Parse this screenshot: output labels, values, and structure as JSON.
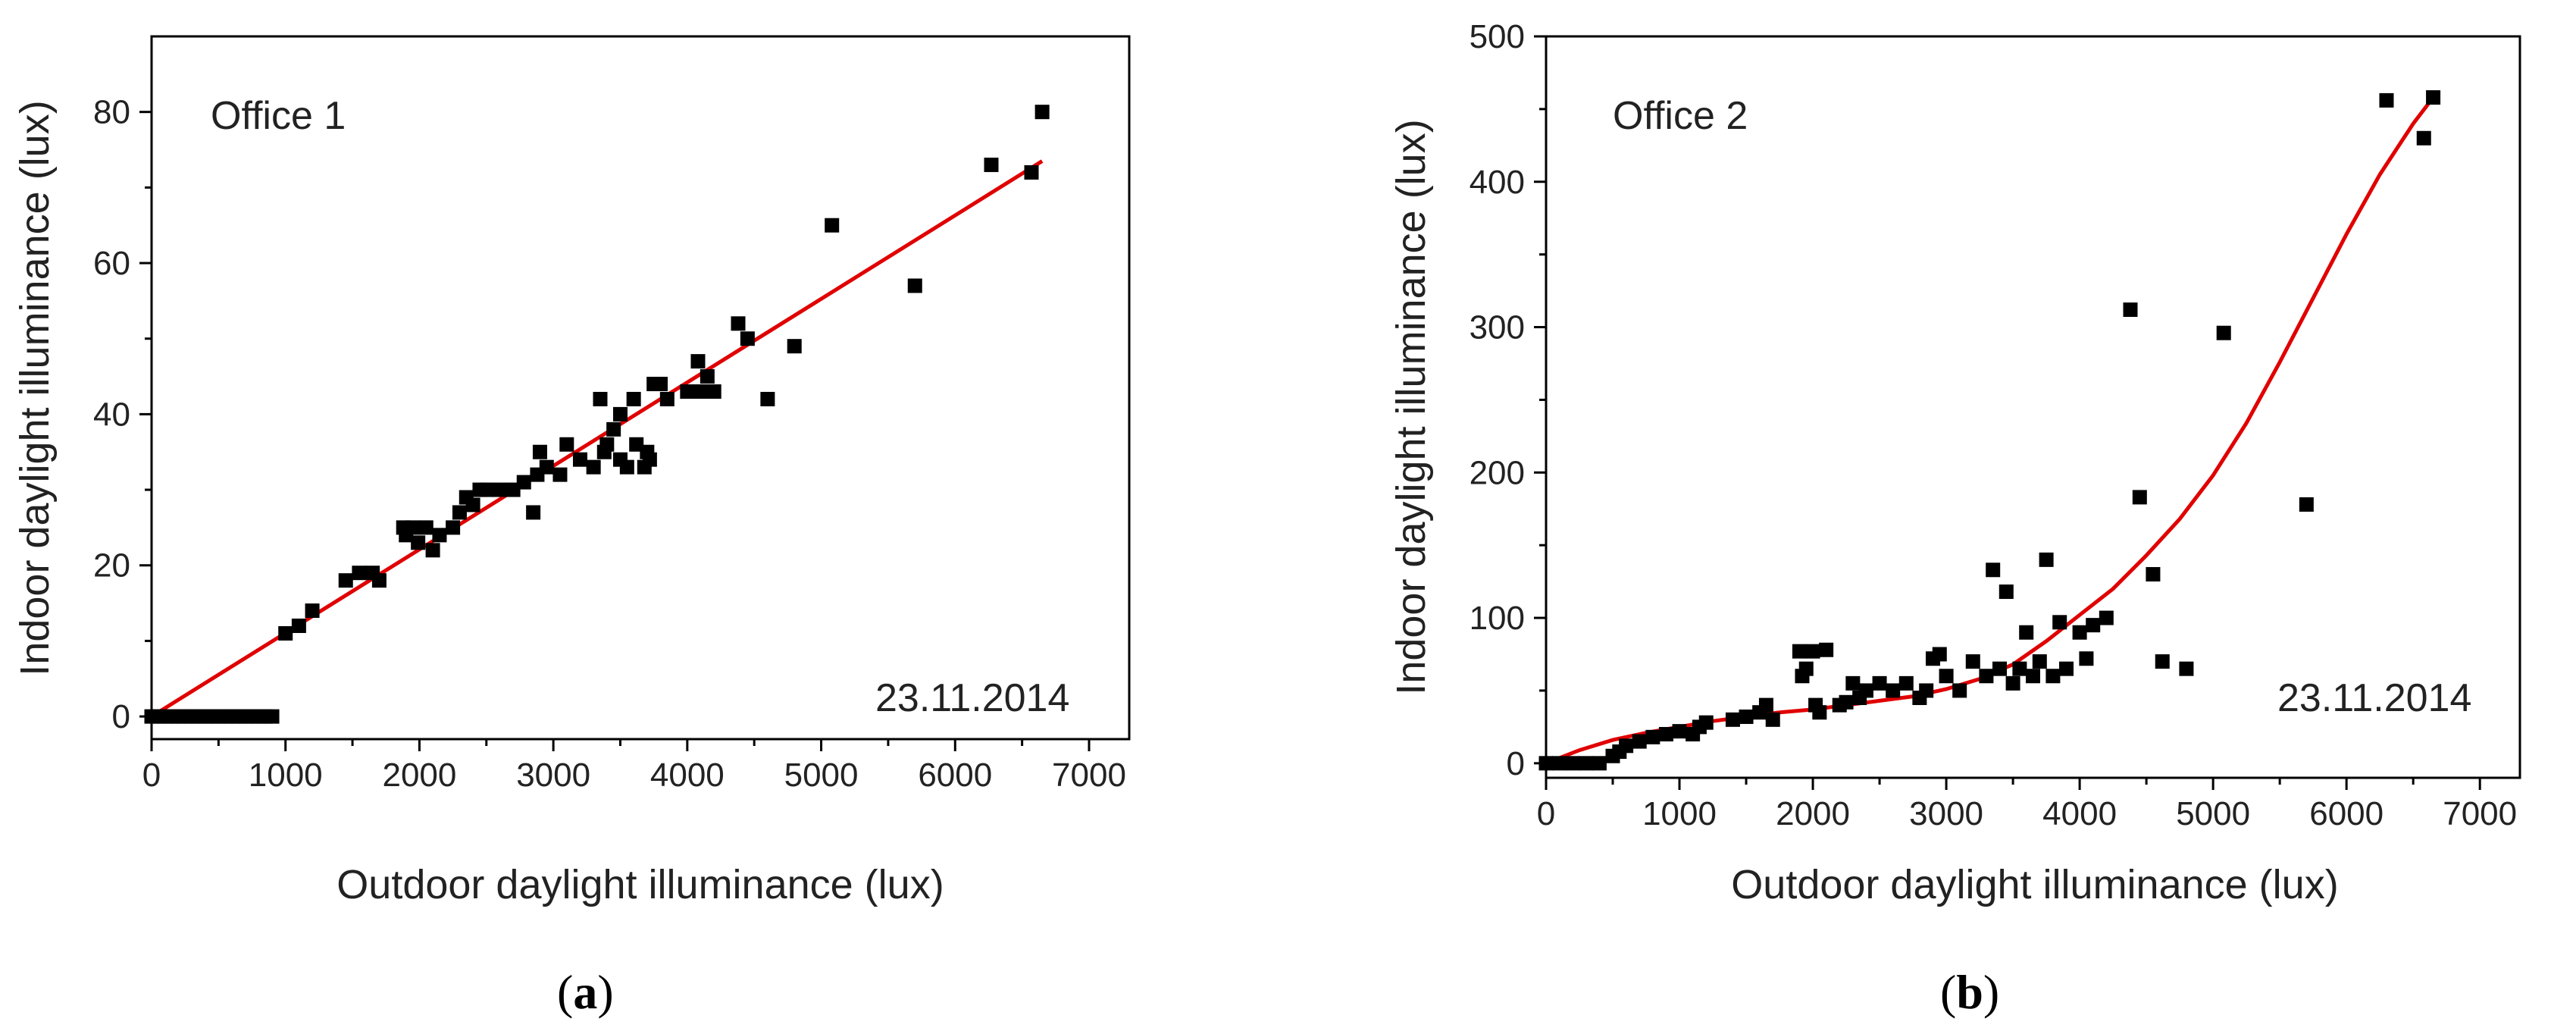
{
  "colors": {
    "points": "#000000",
    "fit_line": "#e00000",
    "axes": "#000000",
    "background": "#ffffff"
  },
  "chart_data": [
    {
      "type": "scatter",
      "panel_label": "a",
      "inset_label": "Office 1",
      "date_label": "23.11.2014",
      "xlabel": "Outdoor daylight illuminance (lux)",
      "ylabel": "Indoor daylight illuminance (lux)",
      "xlim": [
        0,
        7300
      ],
      "ylim": [
        -3,
        90
      ],
      "xticks": [
        0,
        1000,
        2000,
        3000,
        4000,
        5000,
        6000,
        7000
      ],
      "yticks": [
        0,
        20,
        40,
        60,
        80
      ],
      "grid": false,
      "fit": {
        "type": "linear",
        "x": [
          0,
          6650
        ],
        "y": [
          0,
          73.5
        ]
      },
      "points": {
        "x": [
          0,
          50,
          100,
          150,
          200,
          250,
          300,
          350,
          400,
          450,
          500,
          550,
          600,
          650,
          700,
          750,
          800,
          850,
          900,
          1000,
          1100,
          1200,
          1450,
          1550,
          1650,
          1700,
          1880,
          1900,
          1950,
          1990,
          2050,
          2100,
          2150,
          2250,
          2300,
          2350,
          2400,
          2450,
          2500,
          2600,
          2700,
          2780,
          2850,
          2880,
          2900,
          2950,
          3050,
          3100,
          3200,
          3300,
          3350,
          3380,
          3400,
          3450,
          3500,
          3500,
          3550,
          3600,
          3620,
          3680,
          3700,
          3720,
          3750,
          3800,
          3850,
          4000,
          4080,
          4100,
          4150,
          4200,
          4380,
          4450,
          4600,
          4800,
          5080,
          5700,
          6270,
          6570,
          6650
        ],
        "y": [
          0,
          0,
          0,
          0,
          0,
          0,
          0,
          0,
          0,
          0,
          0,
          0,
          0,
          0,
          0,
          0,
          0,
          0,
          0,
          11,
          12,
          14,
          18,
          19,
          19,
          18,
          25,
          24,
          25,
          23,
          25,
          22,
          24,
          25,
          27,
          29,
          28,
          30,
          30,
          30,
          30,
          31,
          27,
          32,
          35,
          33,
          32,
          36,
          34,
          33,
          42,
          35,
          36,
          38,
          40,
          34,
          33,
          42,
          36,
          33,
          35,
          34,
          44,
          44,
          42,
          43,
          47,
          43,
          45,
          43,
          52,
          50,
          42,
          49,
          65,
          57,
          73,
          72,
          80
        ]
      }
    },
    {
      "type": "scatter",
      "panel_label": "b",
      "inset_label": "Office 2",
      "date_label": "23.11.2014",
      "xlabel": "Outdoor daylight illuminance (lux)",
      "ylabel": "Indoor daylight illuminance (lux)",
      "xlim": [
        0,
        7300
      ],
      "ylim": [
        -10,
        500
      ],
      "xticks": [
        0,
        1000,
        2000,
        3000,
        4000,
        5000,
        6000,
        7000
      ],
      "yticks": [
        0,
        100,
        200,
        300,
        400,
        500
      ],
      "grid": false,
      "fit": {
        "type": "polynomial",
        "x": [
          0,
          250,
          500,
          750,
          1000,
          1250,
          1500,
          1750,
          2000,
          2250,
          2500,
          2750,
          3000,
          3250,
          3500,
          3750,
          4000,
          4250,
          4500,
          4750,
          5000,
          5250,
          5500,
          5750,
          6000,
          6250,
          6500,
          6650
        ],
        "y": [
          0,
          9,
          16,
          21,
          25,
          29,
          32,
          35,
          37,
          40,
          43,
          46,
          51,
          58,
          68,
          84,
          102,
          120,
          143,
          168,
          198,
          234,
          276,
          320,
          364,
          405,
          440,
          458
        ]
      },
      "points": {
        "x": [
          0,
          100,
          200,
          300,
          400,
          500,
          550,
          600,
          700,
          800,
          900,
          1000,
          1100,
          1150,
          1200,
          1400,
          1500,
          1600,
          1650,
          1700,
          1900,
          1920,
          1950,
          2000,
          2020,
          2050,
          2100,
          2200,
          2250,
          2300,
          2350,
          2400,
          2500,
          2600,
          2700,
          2800,
          2850,
          2900,
          2950,
          3000,
          3100,
          3200,
          3300,
          3350,
          3400,
          3450,
          3500,
          3550,
          3600,
          3650,
          3700,
          3750,
          3800,
          3850,
          3900,
          4000,
          4050,
          4100,
          4200,
          4380,
          4450,
          4550,
          4620,
          4800,
          5080,
          5700,
          6300,
          6580,
          6650
        ],
        "y": [
          0,
          0,
          0,
          0,
          0,
          5,
          8,
          12,
          15,
          18,
          20,
          22,
          20,
          25,
          28,
          30,
          32,
          35,
          40,
          30,
          77,
          60,
          65,
          77,
          40,
          35,
          78,
          40,
          42,
          55,
          45,
          50,
          55,
          50,
          55,
          45,
          50,
          72,
          75,
          60,
          50,
          70,
          60,
          133,
          65,
          118,
          55,
          65,
          90,
          60,
          70,
          140,
          60,
          97,
          65,
          90,
          72,
          95,
          100,
          312,
          183,
          130,
          70,
          65,
          296,
          178,
          456,
          430,
          458
        ]
      }
    }
  ]
}
